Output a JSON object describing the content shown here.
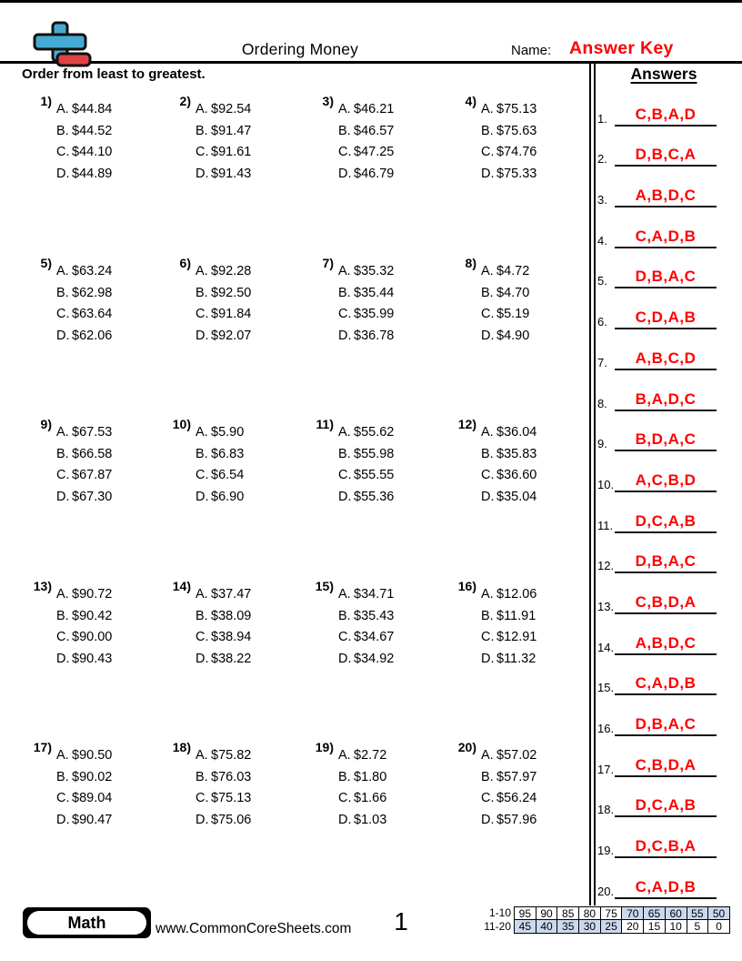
{
  "colors": {
    "accent_red": "#fe0000",
    "highlight_blue": "#cbd9ee",
    "logo_blue": "#45aad2",
    "logo_red": "#e04343"
  },
  "header": {
    "title": "Ordering Money",
    "name_label": "Name:",
    "answer_key": "Answer Key",
    "instruction": "Order from least to greatest."
  },
  "option_letters": [
    "A.",
    "B.",
    "C.",
    "D."
  ],
  "problems": [
    {
      "num": "1)",
      "amounts": [
        "$44.84",
        "$44.52",
        "$44.10",
        "$44.89"
      ]
    },
    {
      "num": "2)",
      "amounts": [
        "$92.54",
        "$91.47",
        "$91.61",
        "$91.43"
      ]
    },
    {
      "num": "3)",
      "amounts": [
        "$46.21",
        "$46.57",
        "$47.25",
        "$46.79"
      ]
    },
    {
      "num": "4)",
      "amounts": [
        "$75.13",
        "$75.63",
        "$74.76",
        "$75.33"
      ]
    },
    {
      "num": "5)",
      "amounts": [
        "$63.24",
        "$62.98",
        "$63.64",
        "$62.06"
      ]
    },
    {
      "num": "6)",
      "amounts": [
        "$92.28",
        "$92.50",
        "$91.84",
        "$92.07"
      ]
    },
    {
      "num": "7)",
      "amounts": [
        "$35.32",
        "$35.44",
        "$35.99",
        "$36.78"
      ]
    },
    {
      "num": "8)",
      "amounts": [
        "$4.72",
        "$4.70",
        "$5.19",
        "$4.90"
      ]
    },
    {
      "num": "9)",
      "amounts": [
        "$67.53",
        "$66.58",
        "$67.87",
        "$67.30"
      ]
    },
    {
      "num": "10)",
      "amounts": [
        "$5.90",
        "$6.83",
        "$6.54",
        "$6.90"
      ]
    },
    {
      "num": "11)",
      "amounts": [
        "$55.62",
        "$55.98",
        "$55.55",
        "$55.36"
      ]
    },
    {
      "num": "12)",
      "amounts": [
        "$36.04",
        "$35.83",
        "$36.60",
        "$35.04"
      ]
    },
    {
      "num": "13)",
      "amounts": [
        "$90.72",
        "$90.42",
        "$90.00",
        "$90.43"
      ]
    },
    {
      "num": "14)",
      "amounts": [
        "$37.47",
        "$38.09",
        "$38.94",
        "$38.22"
      ]
    },
    {
      "num": "15)",
      "amounts": [
        "$34.71",
        "$35.43",
        "$34.67",
        "$34.92"
      ]
    },
    {
      "num": "16)",
      "amounts": [
        "$12.06",
        "$11.91",
        "$12.91",
        "$11.32"
      ]
    },
    {
      "num": "17)",
      "amounts": [
        "$90.50",
        "$90.02",
        "$89.04",
        "$90.47"
      ]
    },
    {
      "num": "18)",
      "amounts": [
        "$75.82",
        "$76.03",
        "$75.13",
        "$75.06"
      ]
    },
    {
      "num": "19)",
      "amounts": [
        "$2.72",
        "$1.80",
        "$1.66",
        "$1.03"
      ]
    },
    {
      "num": "20)",
      "amounts": [
        "$57.02",
        "$57.97",
        "$56.24",
        "$57.96"
      ]
    }
  ],
  "answers_panel": {
    "title": "Answers",
    "items": [
      {
        "num": "1.",
        "value": "C,B,A,D"
      },
      {
        "num": "2.",
        "value": "D,B,C,A"
      },
      {
        "num": "3.",
        "value": "A,B,D,C"
      },
      {
        "num": "4.",
        "value": "C,A,D,B"
      },
      {
        "num": "5.",
        "value": "D,B,A,C"
      },
      {
        "num": "6.",
        "value": "C,D,A,B"
      },
      {
        "num": "7.",
        "value": "A,B,C,D"
      },
      {
        "num": "8.",
        "value": "B,A,D,C"
      },
      {
        "num": "9.",
        "value": "B,D,A,C"
      },
      {
        "num": "10.",
        "value": "A,C,B,D"
      },
      {
        "num": "11.",
        "value": "D,C,A,B"
      },
      {
        "num": "12.",
        "value": "D,B,A,C"
      },
      {
        "num": "13.",
        "value": "C,B,D,A"
      },
      {
        "num": "14.",
        "value": "A,B,D,C"
      },
      {
        "num": "15.",
        "value": "C,A,D,B"
      },
      {
        "num": "16.",
        "value": "D,B,A,C"
      },
      {
        "num": "17.",
        "value": "C,B,D,A"
      },
      {
        "num": "18.",
        "value": "D,C,A,B"
      },
      {
        "num": "19.",
        "value": "D,C,B,A"
      },
      {
        "num": "20.",
        "value": "C,A,D,B"
      }
    ]
  },
  "footer": {
    "subject": "Math",
    "website": "www.CommonCoreSheets.com",
    "page_number": "1",
    "grading": {
      "rows": [
        {
          "label": "1-10",
          "cells": [
            "95",
            "90",
            "85",
            "80",
            "75",
            "70",
            "65",
            "60",
            "55",
            "50"
          ],
          "highlighted": [
            false,
            false,
            false,
            false,
            false,
            true,
            true,
            true,
            true,
            true
          ]
        },
        {
          "label": "11-20",
          "cells": [
            "45",
            "40",
            "35",
            "30",
            "25",
            "20",
            "15",
            "10",
            "5",
            "0"
          ],
          "highlighted": [
            true,
            true,
            true,
            true,
            true,
            false,
            false,
            false,
            false,
            false
          ]
        }
      ]
    }
  }
}
